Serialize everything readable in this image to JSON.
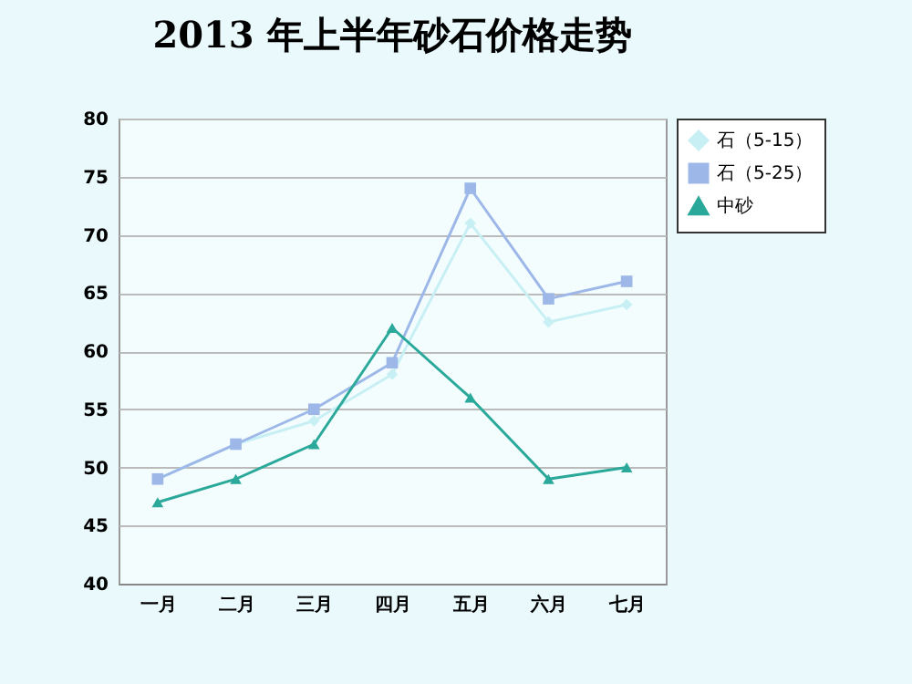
{
  "chart_data": {
    "type": "line",
    "title": "2013 年上半年砂石价格走势",
    "categories": [
      "一月",
      "二月",
      "三月",
      "四月",
      "五月",
      "六月",
      "七月"
    ],
    "series": [
      {
        "name": "石（5-15）",
        "color": "#c8f0f4",
        "marker": "diamond",
        "values": [
          49,
          52,
          54,
          58,
          71,
          62.5,
          64
        ]
      },
      {
        "name": "石（5-25）",
        "color": "#9db8e8",
        "marker": "square",
        "values": [
          49,
          52,
          55,
          59,
          74,
          64.5,
          66
        ]
      },
      {
        "name": "中砂",
        "color": "#2aa89a",
        "marker": "triangle",
        "values": [
          47,
          49,
          52,
          62,
          56,
          49,
          50
        ]
      }
    ],
    "ylim": [
      40,
      80
    ],
    "yticks": [
      40,
      45,
      50,
      55,
      60,
      65,
      70,
      75,
      80
    ],
    "grid": "y",
    "legend": "right"
  }
}
